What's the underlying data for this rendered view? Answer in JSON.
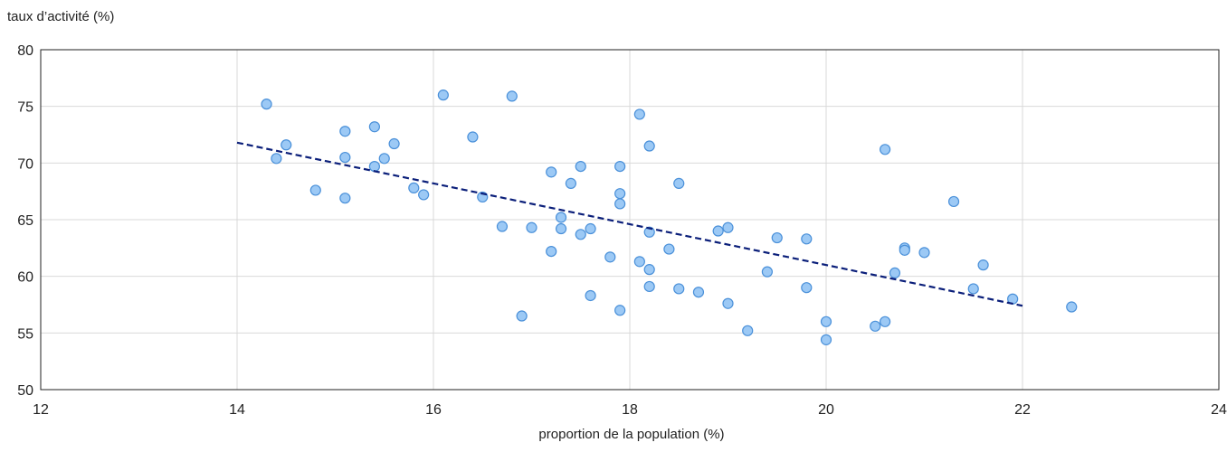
{
  "chart_data": {
    "type": "scatter",
    "xlabel": "proportion de la population (%)",
    "ylabel": "taux d’activité (%)",
    "xlim": [
      12,
      24
    ],
    "ylim": [
      50,
      80
    ],
    "xticks": [
      12,
      14,
      16,
      18,
      20,
      22,
      24
    ],
    "yticks": [
      50,
      55,
      60,
      65,
      70,
      75,
      80
    ],
    "grid": true,
    "colors": {
      "point_fill": "#9cc9f5",
      "point_stroke": "#4a90d9",
      "trend": "#0b1f7a",
      "grid": "#d9d9d9"
    },
    "points": [
      [
        14.3,
        75.2
      ],
      [
        14.4,
        70.4
      ],
      [
        14.5,
        71.6
      ],
      [
        14.8,
        67.6
      ],
      [
        15.1,
        72.8
      ],
      [
        15.1,
        70.5
      ],
      [
        15.1,
        66.9
      ],
      [
        15.4,
        73.2
      ],
      [
        15.4,
        69.7
      ],
      [
        15.5,
        70.4
      ],
      [
        15.6,
        71.7
      ],
      [
        15.8,
        67.8
      ],
      [
        15.9,
        67.2
      ],
      [
        16.1,
        76.0
      ],
      [
        16.4,
        72.3
      ],
      [
        16.5,
        67.0
      ],
      [
        16.7,
        64.4
      ],
      [
        16.8,
        75.9
      ],
      [
        16.9,
        56.5
      ],
      [
        17.0,
        64.3
      ],
      [
        17.2,
        69.2
      ],
      [
        17.2,
        62.2
      ],
      [
        17.3,
        65.2
      ],
      [
        17.3,
        64.2
      ],
      [
        17.4,
        68.2
      ],
      [
        17.5,
        69.7
      ],
      [
        17.5,
        63.7
      ],
      [
        17.6,
        64.2
      ],
      [
        17.6,
        58.3
      ],
      [
        17.8,
        61.7
      ],
      [
        17.9,
        69.7
      ],
      [
        17.9,
        67.3
      ],
      [
        17.9,
        66.4
      ],
      [
        17.9,
        57.0
      ],
      [
        18.1,
        74.3
      ],
      [
        18.1,
        61.3
      ],
      [
        18.2,
        71.5
      ],
      [
        18.2,
        63.9
      ],
      [
        18.2,
        60.6
      ],
      [
        18.2,
        59.1
      ],
      [
        18.4,
        62.4
      ],
      [
        18.5,
        68.2
      ],
      [
        18.5,
        58.9
      ],
      [
        18.7,
        58.6
      ],
      [
        18.9,
        64.0
      ],
      [
        19.0,
        64.3
      ],
      [
        19.0,
        57.6
      ],
      [
        19.2,
        55.2
      ],
      [
        19.4,
        60.4
      ],
      [
        19.5,
        63.4
      ],
      [
        19.8,
        63.3
      ],
      [
        19.8,
        59.0
      ],
      [
        20.0,
        56.0
      ],
      [
        20.0,
        54.4
      ],
      [
        20.5,
        55.6
      ],
      [
        20.6,
        56.0
      ],
      [
        20.6,
        71.2
      ],
      [
        20.7,
        60.3
      ],
      [
        20.8,
        62.5
      ],
      [
        20.8,
        62.3
      ],
      [
        21.0,
        62.1
      ],
      [
        21.3,
        66.6
      ],
      [
        21.5,
        58.9
      ],
      [
        21.6,
        61.0
      ],
      [
        21.9,
        58.0
      ],
      [
        22.5,
        57.3
      ]
    ],
    "trendline": {
      "style": "dashed",
      "x": [
        14.0,
        22.0
      ],
      "y": [
        71.8,
        57.4
      ]
    }
  }
}
